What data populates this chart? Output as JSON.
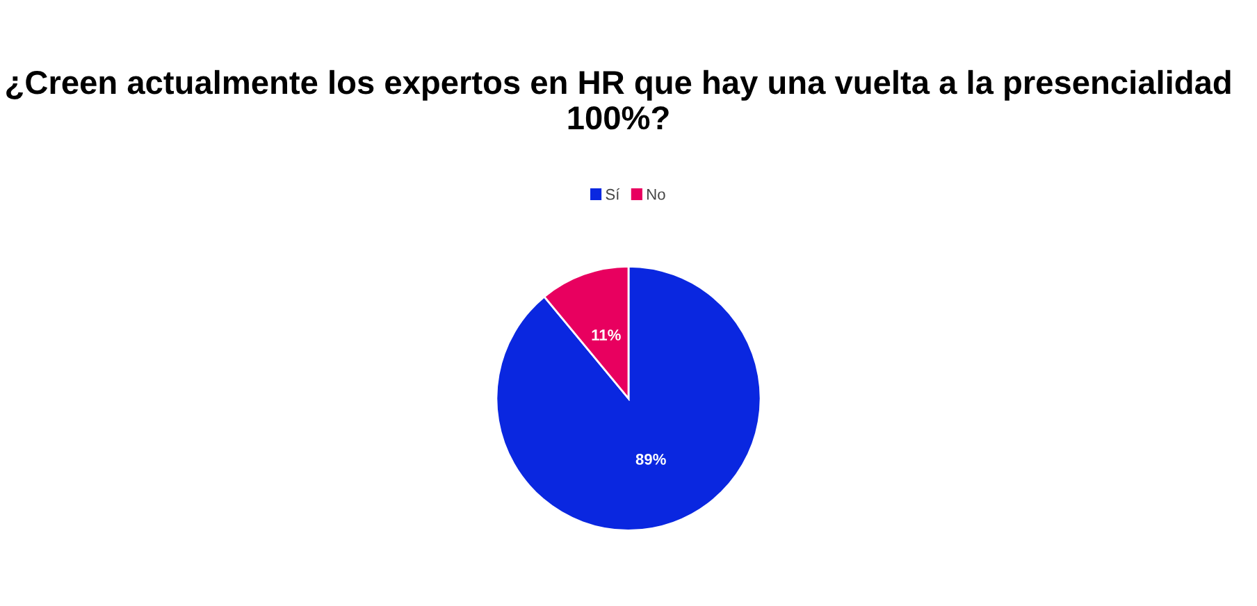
{
  "chart_data": {
    "type": "pie",
    "title": "¿Creen actualmente los expertos en HR que hay una vuelta a la presencialidad 100%?",
    "categories": [
      "Sí",
      "No"
    ],
    "values": [
      89,
      11
    ],
    "colors": [
      "#0a27e0",
      "#e8005f"
    ],
    "value_labels": [
      "89%",
      "11%"
    ],
    "legend": "top"
  }
}
